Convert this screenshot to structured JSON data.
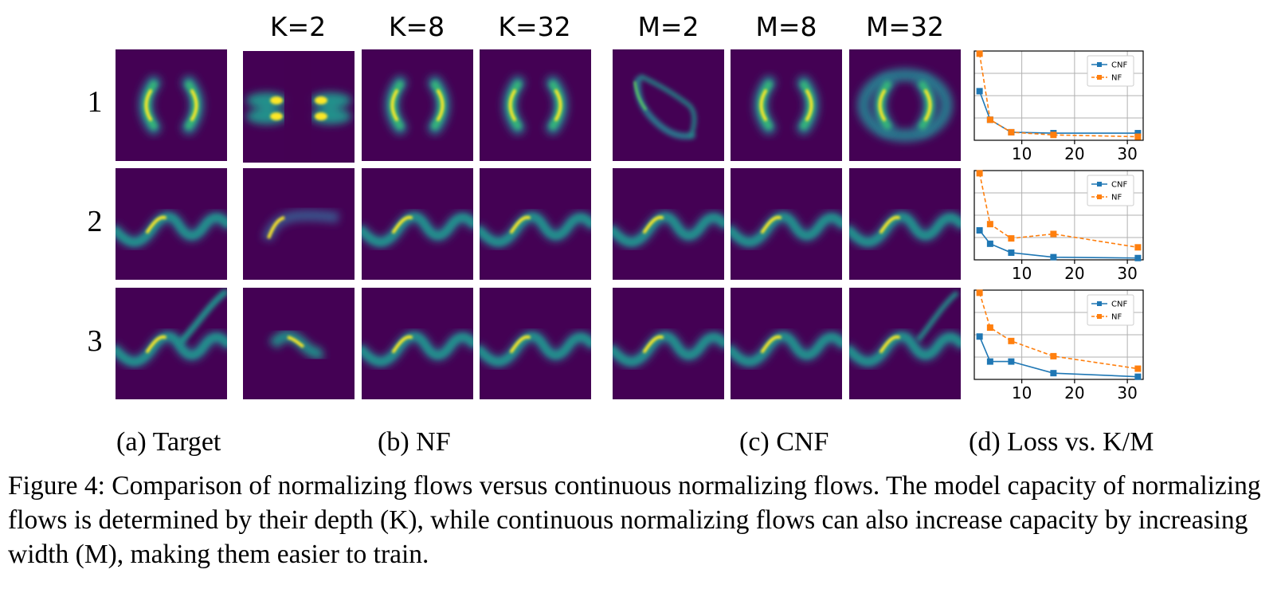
{
  "column_headers": [
    "K=2",
    "K=8",
    "K=32",
    "M=2",
    "M=8",
    "M=32"
  ],
  "row_labels": [
    "1",
    "2",
    "3"
  ],
  "subcaptions": {
    "a": "(a) Target",
    "b": "(b) NF",
    "c": "(c) CNF",
    "d": "(d) Loss vs. K/M"
  },
  "caption": "Figure 4: Comparison of normalizing flows versus continuous normalizing flows. The model capacity of normalizing flows is determined by their depth (K), while continuous normalizing flows can also increase capacity by increasing width (M), making them easier to train.",
  "colors": {
    "background": "#440154",
    "cnf": "#1f77b4",
    "nf": "#ff7f0e",
    "grid": "#b0b0b0"
  },
  "chart_data": [
    {
      "type": "line",
      "row": "1",
      "x": [
        2,
        4,
        8,
        16,
        32
      ],
      "xticks": [
        10,
        20,
        30
      ],
      "xlim": [
        1,
        33
      ],
      "ylim": [
        0,
        1
      ],
      "grid": true,
      "legend": "top-right",
      "series": [
        {
          "name": "CNF",
          "style": "solid",
          "values": [
            0.55,
            0.23,
            0.09,
            0.08,
            0.08
          ]
        },
        {
          "name": "NF",
          "style": "dashed",
          "values": [
            0.97,
            0.23,
            0.09,
            0.06,
            0.04
          ]
        }
      ]
    },
    {
      "type": "line",
      "row": "2",
      "x": [
        2,
        4,
        8,
        16,
        32
      ],
      "xticks": [
        10,
        20,
        30
      ],
      "xlim": [
        1,
        33
      ],
      "ylim": [
        0,
        1
      ],
      "grid": true,
      "legend": "top-right",
      "series": [
        {
          "name": "CNF",
          "style": "solid",
          "values": [
            0.33,
            0.18,
            0.08,
            0.03,
            0.02
          ]
        },
        {
          "name": "NF",
          "style": "dashed",
          "values": [
            0.97,
            0.4,
            0.24,
            0.29,
            0.14
          ]
        }
      ]
    },
    {
      "type": "line",
      "row": "3",
      "x": [
        2,
        4,
        8,
        16,
        32
      ],
      "xticks": [
        10,
        20,
        30
      ],
      "xlim": [
        1,
        33
      ],
      "ylim": [
        0,
        1
      ],
      "grid": true,
      "legend": "top-right",
      "series": [
        {
          "name": "CNF",
          "style": "solid",
          "values": [
            0.48,
            0.2,
            0.2,
            0.07,
            0.03
          ]
        },
        {
          "name": "NF",
          "style": "dashed",
          "values": [
            0.97,
            0.58,
            0.43,
            0.26,
            0.12
          ]
        }
      ]
    }
  ]
}
